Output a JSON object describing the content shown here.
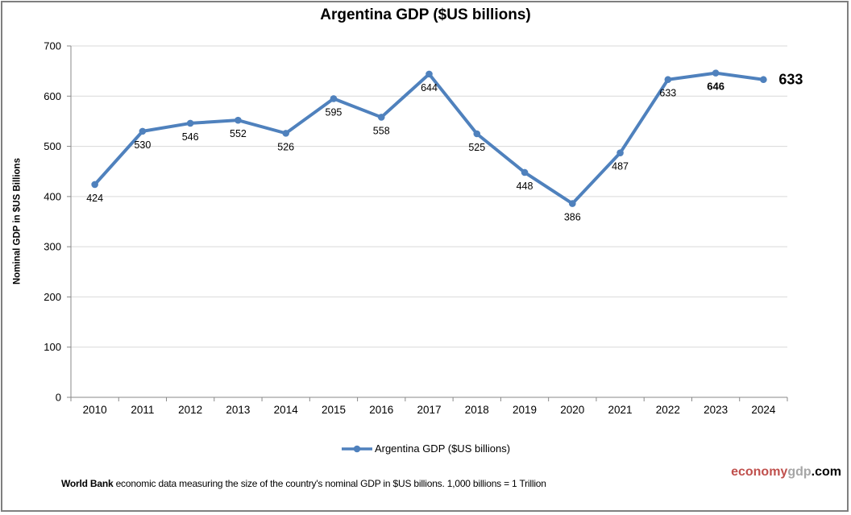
{
  "title": "Argentina GDP ($US billions)",
  "y_axis_title": "Nominal GDP in $US Billions",
  "legend": {
    "label": "Argentina GDP ($US billions)"
  },
  "footer": {
    "bold": "World Bank",
    "text": " economic data  measuring the size of the country's nominal GDP in $US billions. 1,000 billions = 1 Trillion"
  },
  "watermark": {
    "part1": "economy",
    "part2": "gdp",
    "part3": ".com",
    "color1": "#c0504d",
    "color2": "#a6a6a6",
    "color3": "#000000"
  },
  "chart_data": {
    "type": "line",
    "title": "Argentina GDP ($US billions)",
    "xlabel": "",
    "ylabel": "Nominal GDP in $US Billions",
    "categories": [
      "2010",
      "2011",
      "2012",
      "2013",
      "2014",
      "2015",
      "2016",
      "2017",
      "2018",
      "2019",
      "2020",
      "2021",
      "2022",
      "2023",
      "2024"
    ],
    "series": [
      {
        "name": "Argentina GDP ($US billions)",
        "values": [
          424,
          530,
          546,
          552,
          526,
          595,
          558,
          644,
          525,
          448,
          386,
          487,
          633,
          646,
          633
        ]
      }
    ],
    "ylim": [
      0,
      700
    ],
    "yticks": [
      0,
      100,
      200,
      300,
      400,
      500,
      600,
      700
    ],
    "grid": true,
    "legend_position": "bottom",
    "line_color": "#4f81bd",
    "gridline_color": "#d9d9d9",
    "axis_color": "#898989",
    "point_labels": [
      {
        "text": "424"
      },
      {
        "text": "530"
      },
      {
        "text": "546"
      },
      {
        "text": "552"
      },
      {
        "text": "526"
      },
      {
        "text": "595"
      },
      {
        "text": "558"
      },
      {
        "text": "644"
      },
      {
        "text": "525"
      },
      {
        "text": "448"
      },
      {
        "text": "386"
      },
      {
        "text": "487"
      },
      {
        "text": "633"
      },
      {
        "text": "646",
        "bold": true
      },
      {
        "text": "633",
        "bold": true,
        "large": true,
        "side": "right"
      }
    ]
  }
}
